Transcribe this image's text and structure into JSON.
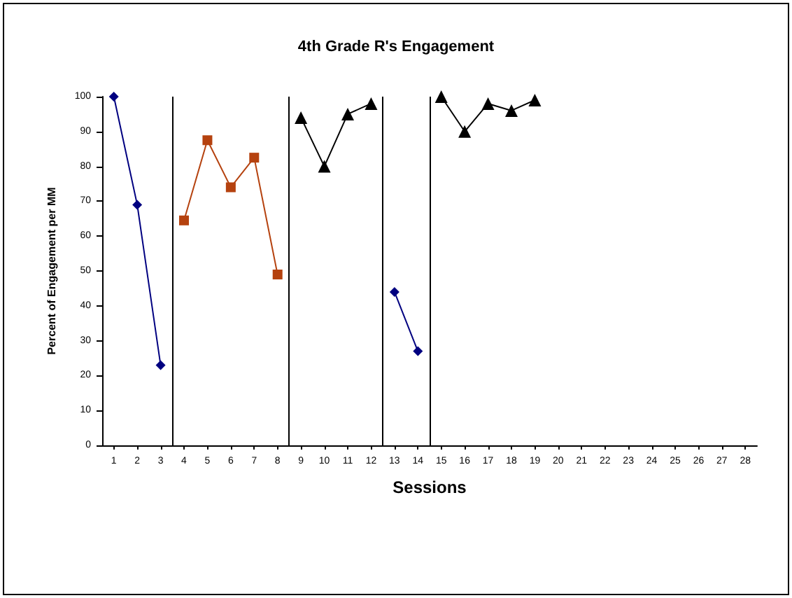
{
  "chart_data": {
    "type": "line",
    "title": "4th Grade R's Engagement",
    "xlabel": "Sessions",
    "ylabel": "Percent of Engagement per MM",
    "xlim": [
      0.5,
      28.5
    ],
    "xticks": [
      1,
      2,
      3,
      4,
      5,
      6,
      7,
      8,
      9,
      10,
      11,
      12,
      13,
      14,
      15,
      16,
      17,
      18,
      19,
      20,
      21,
      22,
      23,
      24,
      25,
      26,
      27,
      28
    ],
    "ylim": [
      0,
      100
    ],
    "yticks": [
      0,
      10,
      20,
      30,
      40,
      50,
      60,
      70,
      80,
      90,
      100
    ],
    "grid": false,
    "series": [
      {
        "color": "#000080",
        "marker": "diamond",
        "x": [
          1,
          2,
          3
        ],
        "values": [
          100,
          69,
          23
        ]
      },
      {
        "color": "#b5420f",
        "marker": "square",
        "x": [
          4,
          5,
          6,
          7,
          8
        ],
        "values": [
          64.5,
          87.5,
          74,
          82.5,
          49
        ]
      },
      {
        "color": "#000000",
        "marker": "triangle",
        "x": [
          9,
          10,
          11,
          12
        ],
        "values": [
          94,
          80,
          95,
          98
        ]
      },
      {
        "color": "#000080",
        "marker": "diamond",
        "x": [
          13,
          14
        ],
        "values": [
          44,
          27
        ]
      },
      {
        "color": "#000000",
        "marker": "triangle",
        "x": [
          15,
          16,
          17,
          18,
          19
        ],
        "values": [
          100,
          90,
          98,
          96,
          99
        ]
      }
    ],
    "ref_lines": [
      {
        "axis": "x",
        "value": 3.5
      },
      {
        "axis": "x",
        "value": 8.5
      },
      {
        "axis": "x",
        "value": 12.5
      },
      {
        "axis": "x",
        "value": 14.5
      }
    ]
  }
}
